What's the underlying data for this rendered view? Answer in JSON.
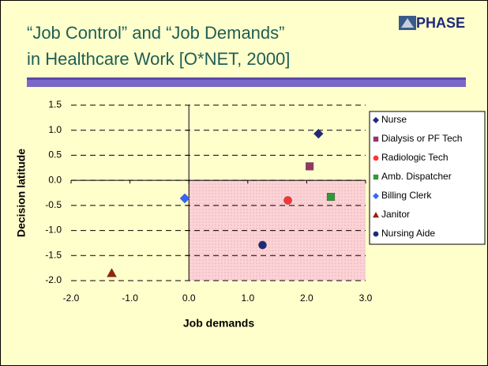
{
  "slide": {
    "title": [
      "“Job Control” and “Job Demands”",
      "in Healthcare Work [O*NET, 2000]"
    ],
    "logo": "PHASE"
  },
  "chart_data": {
    "type": "scatter",
    "xlabel": "Job demands",
    "ylabel": "Decision latitude",
    "xlim": [
      -2,
      3
    ],
    "ylim": [
      -2,
      1.5
    ],
    "xticks": [
      {
        "value": -2,
        "label": "-2.0"
      },
      {
        "value": -1,
        "label": "-1.0"
      },
      {
        "value": 0,
        "label": "0.0"
      },
      {
        "value": 1,
        "label": "1.0"
      },
      {
        "value": 2,
        "label": "2.0"
      },
      {
        "value": 3,
        "label": "3.0"
      }
    ],
    "yticks": [
      {
        "value": 1.5,
        "label": "1.5"
      },
      {
        "value": 1,
        "label": "1.0"
      },
      {
        "value": 0.5,
        "label": "0.5"
      },
      {
        "value": 0,
        "label": "0.0"
      },
      {
        "value": -0.5,
        "label": "-0.5"
      },
      {
        "value": -1,
        "label": "-1.0"
      },
      {
        "value": -1.5,
        "label": "-1.5"
      },
      {
        "value": -2,
        "label": "-2.0"
      }
    ],
    "grid": true,
    "legend": "right",
    "series": [
      {
        "name": "Nurse",
        "color": "#1f2a7a",
        "marker": "diamond",
        "x": [
          2.2
        ],
        "values": [
          0.93
        ]
      },
      {
        "name": "Dialysis or PF Tech",
        "color": "#993366",
        "marker": "square",
        "x": [
          2.05
        ],
        "values": [
          0.28
        ]
      },
      {
        "name": "Radiologic Tech",
        "color": "#ff3333",
        "marker": "circle",
        "x": [
          1.68
        ],
        "values": [
          -0.4
        ]
      },
      {
        "name": "Amb. Dispatcher",
        "color": "#339933",
        "marker": "square",
        "x": [
          2.41
        ],
        "values": [
          -0.33
        ]
      },
      {
        "name": "Billing Clerk",
        "color": "#3366ff",
        "marker": "diamond",
        "x": [
          -0.07
        ],
        "values": [
          -0.36
        ]
      },
      {
        "name": "Janitor",
        "color": "#992200",
        "marker": "triangle",
        "x": [
          -1.31
        ],
        "values": [
          -1.85
        ]
      },
      {
        "name": "Nursing Aide",
        "color": "#1f2a7a",
        "marker": "circle",
        "x": [
          1.25
        ],
        "values": [
          -1.29
        ]
      }
    ]
  }
}
